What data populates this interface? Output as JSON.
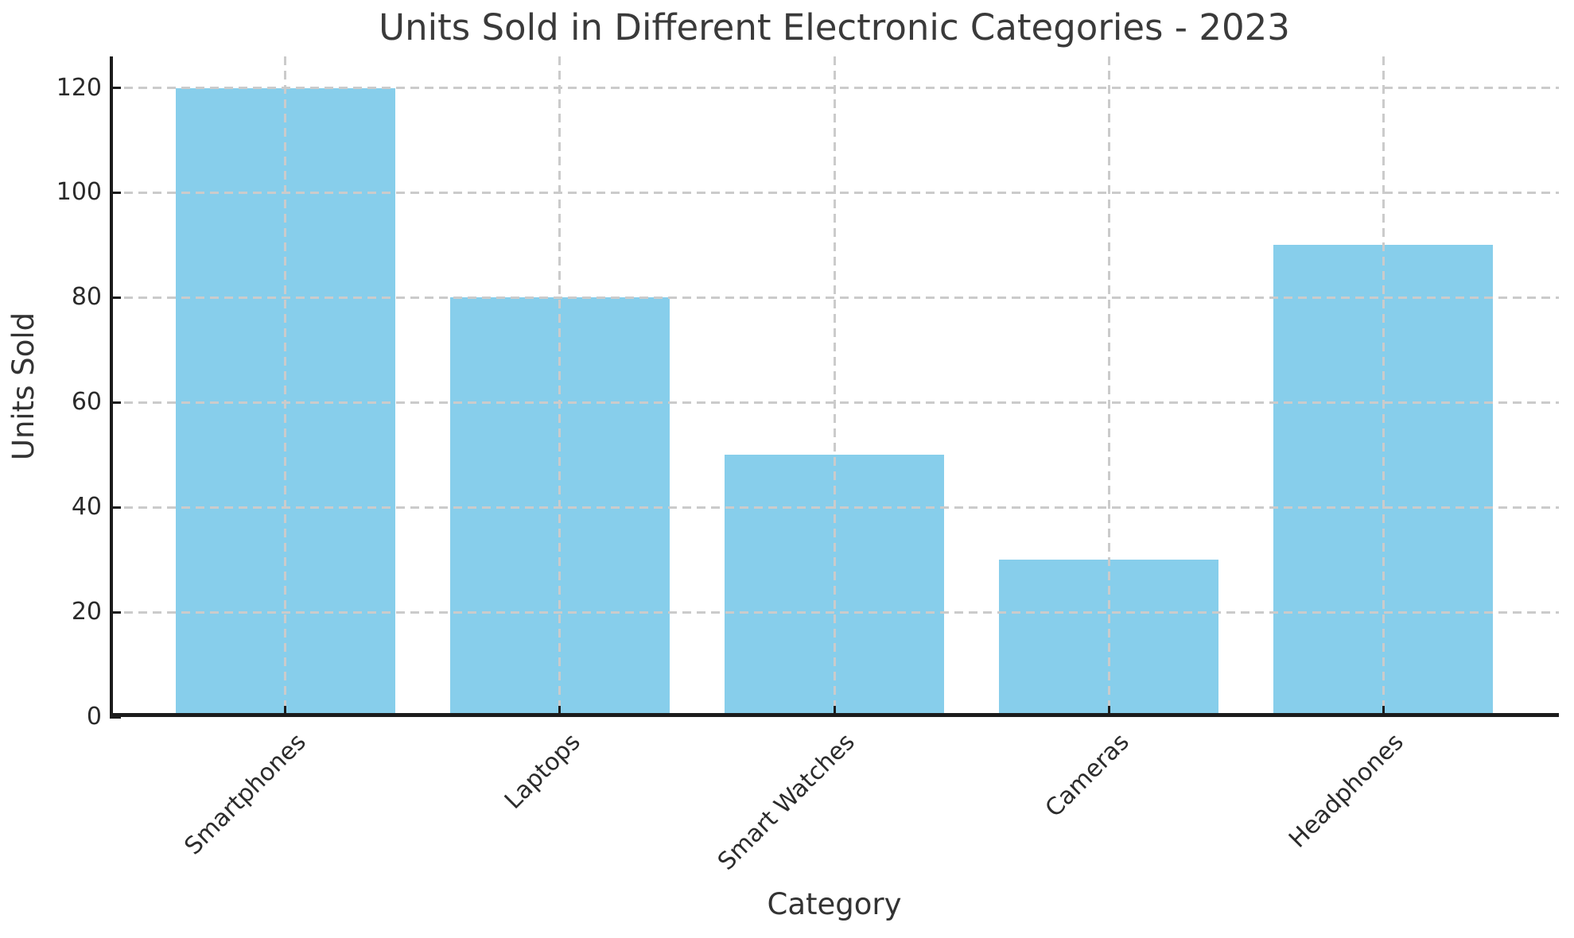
{
  "chart_data": {
    "type": "bar",
    "title": "Units Sold in Different Electronic Categories - 2023",
    "xlabel": "Category",
    "ylabel": "Units Sold",
    "categories": [
      "Smartphones",
      "Laptops",
      "Smart Watches",
      "Cameras",
      "Headphones"
    ],
    "values": [
      120,
      80,
      50,
      30,
      90
    ],
    "yticks": [
      0,
      20,
      40,
      60,
      80,
      100,
      120
    ],
    "ylim": [
      0,
      126
    ],
    "xlim": [
      -0.64,
      4.64
    ],
    "bar_width": 0.8,
    "bar_color": "#87ceeb",
    "grid": "dashed, both axes, drawn over bars",
    "grid_color": "#cbcbcb",
    "spine_color": "#1c1c1c",
    "text_color": "#333333",
    "legend": "none"
  }
}
